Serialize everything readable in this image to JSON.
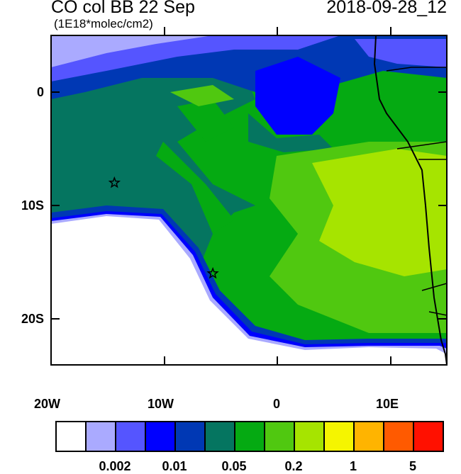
{
  "header": {
    "title": "CO col BB 22 Sep",
    "date": "2018-09-28_12",
    "units": "(1E18*molec/cm2)"
  },
  "axes": {
    "lat_labels": [
      "0",
      "10S",
      "20S"
    ],
    "lon_labels": [
      "20W",
      "10W",
      "0",
      "10E"
    ],
    "lon_range": [
      -20,
      15
    ],
    "lat_range": [
      -24,
      5
    ]
  },
  "markers": [
    {
      "name": "star",
      "lon": -14.4,
      "lat": -8.0
    },
    {
      "name": "star",
      "lon": -5.7,
      "lat": -16.0
    }
  ],
  "colorbar": {
    "colors": [
      "#ffffff",
      "#aaaaff",
      "#5555ff",
      "#0000ff",
      "#0038b4",
      "#057560",
      "#05aa12",
      "#50c810",
      "#a6e400",
      "#f5f500",
      "#ffb400",
      "#ff5a00",
      "#ff1000"
    ],
    "labels": [
      "0.002",
      "0.01",
      "0.05",
      "0.2",
      "1",
      "5"
    ]
  }
}
